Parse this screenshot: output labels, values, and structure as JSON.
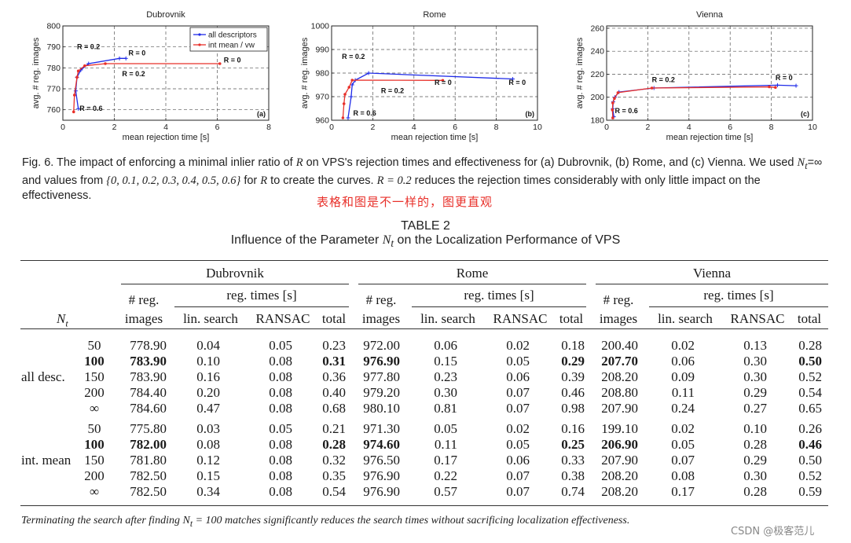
{
  "chart_data": [
    {
      "type": "line",
      "title": "Dubrovnik",
      "xlabel": "mean rejection time [s]",
      "ylabel": "avg. # reg. images",
      "xlim": [
        0,
        8
      ],
      "ylim": [
        755,
        800
      ],
      "xticks": [
        0,
        2,
        4,
        6,
        8
      ],
      "yticks": [
        760,
        770,
        780,
        790,
        800
      ],
      "grid": true,
      "legend": "top-right",
      "panel_label": "(a)",
      "series": [
        {
          "name": "all descriptors",
          "color": "#1f2be8",
          "marker": "+",
          "x": [
            0.6,
            0.5,
            0.55,
            0.7,
            1.0,
            2.2,
            2.45
          ],
          "y": [
            760.5,
            769,
            775.5,
            779,
            782,
            784.5,
            784.5
          ]
        },
        {
          "name": "int mean / vw",
          "color": "#e8302a",
          "marker": "*",
          "x": [
            0.42,
            0.45,
            0.55,
            0.6,
            0.85,
            1.65,
            6.1
          ],
          "y": [
            759,
            767,
            775.5,
            778.5,
            781,
            782,
            782
          ]
        }
      ],
      "annotations": [
        {
          "text": "R = 0.2",
          "x": 0.55,
          "y": 789
        },
        {
          "text": "R = 0",
          "x": 2.55,
          "y": 786
        },
        {
          "text": "R = 0",
          "x": 6.25,
          "y": 782.5
        },
        {
          "text": "R = 0.2",
          "x": 2.3,
          "y": 776
        },
        {
          "text": "R = 0.6",
          "x": 0.65,
          "y": 759.5
        }
      ]
    },
    {
      "type": "line",
      "title": "Rome",
      "xlabel": "mean rejection time [s]",
      "ylabel": "avg. # reg. images",
      "xlim": [
        0,
        10
      ],
      "ylim": [
        960,
        1000
      ],
      "xticks": [
        0,
        2,
        4,
        6,
        8,
        10
      ],
      "yticks": [
        960,
        970,
        980,
        990,
        1000
      ],
      "grid": true,
      "panel_label": "(b)",
      "series": [
        {
          "name": "all descriptors",
          "color": "#1f2be8",
          "marker": "+",
          "x": [
            0.8,
            0.95,
            1.0,
            1.15,
            1.8,
            8.8
          ],
          "y": [
            961,
            970,
            975,
            977,
            980,
            977.5
          ]
        },
        {
          "name": "int mean / vw",
          "color": "#e8302a",
          "marker": "*",
          "x": [
            0.55,
            0.6,
            0.65,
            0.85,
            1.0,
            5.4
          ],
          "y": [
            961,
            967,
            971,
            974,
            977,
            976.9
          ]
        }
      ],
      "annotations": [
        {
          "text": "R = 0.2",
          "x": 0.5,
          "y": 986
        },
        {
          "text": "R = 0.2",
          "x": 2.4,
          "y": 971.5
        },
        {
          "text": "R = 0",
          "x": 5.0,
          "y": 975
        },
        {
          "text": "R = 0",
          "x": 8.6,
          "y": 975
        },
        {
          "text": "R = 0.6",
          "x": 1.05,
          "y": 962
        }
      ]
    },
    {
      "type": "line",
      "title": "Vienna",
      "xlabel": "mean rejection time [s]",
      "ylabel": "avg. # reg. images",
      "xlim": [
        0,
        10
      ],
      "ylim": [
        180,
        262
      ],
      "xticks": [
        0,
        2,
        4,
        6,
        8,
        10
      ],
      "yticks": [
        180,
        200,
        220,
        240,
        260
      ],
      "grid": true,
      "panel_label": "(c)",
      "series": [
        {
          "name": "all descriptors",
          "color": "#1f2be8",
          "marker": "+",
          "x": [
            0.35,
            0.3,
            0.32,
            0.4,
            0.6,
            2.3,
            8.3,
            9.2
          ],
          "y": [
            183,
            190,
            196,
            200,
            204.5,
            208,
            210.5,
            210
          ]
        },
        {
          "name": "int mean / vw",
          "color": "#e8302a",
          "marker": "*",
          "x": [
            0.3,
            0.28,
            0.3,
            0.38,
            0.55,
            2.2,
            7.9,
            8.2
          ],
          "y": [
            182,
            189,
            195,
            199,
            204,
            208,
            209,
            208.5
          ]
        }
      ],
      "annotations": [
        {
          "text": "R = 0.2",
          "x": 2.2,
          "y": 213
        },
        {
          "text": "R = 0",
          "x": 8.2,
          "y": 215
        },
        {
          "text": "R = 0.6",
          "x": 0.4,
          "y": 186
        }
      ]
    }
  ],
  "figure_caption": {
    "prefix": "Fig. 6. The impact of enforcing a minimal inlier ratio of ",
    "r1": "R",
    "p2": " on VPS's rejection times and effectiveness for (a) Dubrovnik, (b) Rome, and (c) Vienna. We used ",
    "nt": "N",
    "ntsub": "t",
    "p3": "=∞ and values from ",
    "set": "{0, 0.1, 0.2, 0.3, 0.4, 0.5, 0.6}",
    "p4": " for ",
    "r2": "R",
    "p5": " to create the curves. ",
    "r3": "R = 0.2",
    "p6": " reduces the rejection times considerably with only little impact on the effectiveness."
  },
  "annotation_text": "表格和图是不一样的，图更直观",
  "table": {
    "label": "TABLE 2",
    "title_prefix": "Influence of the Parameter ",
    "title_math": "N",
    "title_sub": "t",
    "title_suffix": " on the Localization Performance of VPS",
    "stub_header": "N",
    "stub_sub": "t",
    "datasets": [
      "Dubrovnik",
      "Rome",
      "Vienna"
    ],
    "reg_header_top": "# reg.",
    "reg_header_bottom": "images",
    "times_header": "reg. times [s]",
    "sub_headers": [
      "lin. search",
      "RANSAC",
      "total"
    ],
    "groups": [
      {
        "name": "all desc.",
        "rows": [
          {
            "nt": "50",
            "bold": false,
            "vals": [
              "778.90",
              "0.04",
              "0.05",
              "0.23",
              "972.00",
              "0.06",
              "0.02",
              "0.18",
              "200.40",
              "0.02",
              "0.13",
              "0.28"
            ]
          },
          {
            "nt": "100",
            "bold": true,
            "vals": [
              "783.90",
              "0.10",
              "0.08",
              "0.31",
              "976.90",
              "0.15",
              "0.05",
              "0.29",
              "207.70",
              "0.06",
              "0.30",
              "0.50"
            ]
          },
          {
            "nt": "150",
            "bold": false,
            "vals": [
              "783.90",
              "0.16",
              "0.08",
              "0.36",
              "977.80",
              "0.23",
              "0.06",
              "0.39",
              "208.20",
              "0.09",
              "0.30",
              "0.52"
            ]
          },
          {
            "nt": "200",
            "bold": false,
            "vals": [
              "784.40",
              "0.20",
              "0.08",
              "0.40",
              "979.20",
              "0.30",
              "0.07",
              "0.46",
              "208.80",
              "0.11",
              "0.29",
              "0.54"
            ]
          },
          {
            "nt": "∞",
            "bold": false,
            "vals": [
              "784.60",
              "0.47",
              "0.08",
              "0.68",
              "980.10",
              "0.81",
              "0.07",
              "0.98",
              "207.90",
              "0.24",
              "0.27",
              "0.65"
            ]
          }
        ]
      },
      {
        "name": "int. mean",
        "rows": [
          {
            "nt": "50",
            "bold": false,
            "vals": [
              "775.80",
              "0.03",
              "0.05",
              "0.21",
              "971.30",
              "0.05",
              "0.02",
              "0.16",
              "199.10",
              "0.02",
              "0.10",
              "0.26"
            ]
          },
          {
            "nt": "100",
            "bold": true,
            "vals": [
              "782.00",
              "0.08",
              "0.08",
              "0.28",
              "974.60",
              "0.11",
              "0.05",
              "0.25",
              "206.90",
              "0.05",
              "0.28",
              "0.46"
            ]
          },
          {
            "nt": "150",
            "bold": false,
            "vals": [
              "781.80",
              "0.12",
              "0.08",
              "0.32",
              "976.50",
              "0.17",
              "0.06",
              "0.33",
              "207.90",
              "0.07",
              "0.29",
              "0.50"
            ]
          },
          {
            "nt": "200",
            "bold": false,
            "vals": [
              "782.50",
              "0.15",
              "0.08",
              "0.35",
              "976.90",
              "0.22",
              "0.07",
              "0.38",
              "208.20",
              "0.08",
              "0.30",
              "0.52"
            ]
          },
          {
            "nt": "∞",
            "bold": false,
            "vals": [
              "782.50",
              "0.34",
              "0.08",
              "0.54",
              "976.90",
              "0.57",
              "0.07",
              "0.74",
              "208.20",
              "0.17",
              "0.28",
              "0.59"
            ]
          }
        ]
      }
    ],
    "caption_prefix": "Terminating the search after finding ",
    "caption_math": "N",
    "caption_sub": "t",
    "caption_suffix": " = 100 matches significantly reduces the search times without sacrificing localization effectiveness."
  },
  "watermark": "CSDN @极客范儿"
}
